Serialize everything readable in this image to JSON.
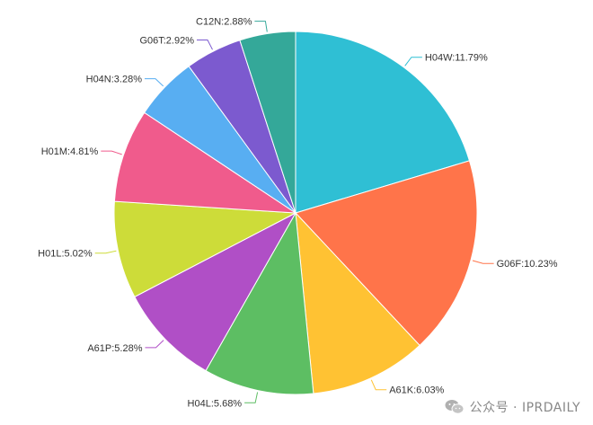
{
  "chart_data": {
    "type": "pie",
    "start_angle_deg": 90,
    "direction": "clockwise",
    "slices": [
      {
        "label": "H04W:11.79%",
        "name": "H04W",
        "value": 11.79,
        "color": "#2fbfd4"
      },
      {
        "label": "G06F:10.23%",
        "name": "G06F",
        "value": 10.23,
        "color": "#ff744a"
      },
      {
        "label": "A61K:6.03%",
        "name": "A61K",
        "value": 6.03,
        "color": "#ffc233"
      },
      {
        "label": "H04L:5.68%",
        "name": "H04L",
        "value": 5.68,
        "color": "#5dbe63"
      },
      {
        "label": "A61P:5.28%",
        "name": "A61P",
        "value": 5.28,
        "color": "#b04fc6"
      },
      {
        "label": "H01L:5.02%",
        "name": "H01L",
        "value": 5.02,
        "color": "#cddc39"
      },
      {
        "label": "H01M:4.81%",
        "name": "H01M",
        "value": 4.81,
        "color": "#f05b8c"
      },
      {
        "label": "H04N:3.28%",
        "name": "H04N",
        "value": 3.28,
        "color": "#58aef2"
      },
      {
        "label": "G06T:2.92%",
        "name": "G06T",
        "value": 2.92,
        "color": "#7c5acf"
      },
      {
        "label": "C12N:2.88%",
        "name": "C12N",
        "value": 2.88,
        "color": "#34a899"
      }
    ]
  },
  "watermark": {
    "icon": "wechat-icon",
    "text": "公众号 · IPRDAILY"
  }
}
